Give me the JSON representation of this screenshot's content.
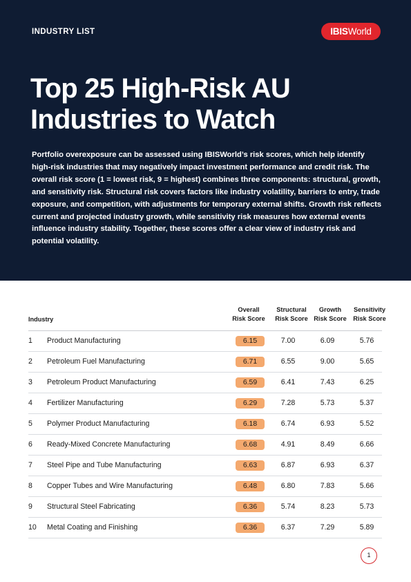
{
  "header": {
    "eyebrow": "INDUSTRY LIST",
    "logo": {
      "bold": "IBIS",
      "regular": "World"
    },
    "title_line1": "Top 25 High-Risk AU",
    "title_line2": "Industries to Watch",
    "intro": "Portfolio overexposure can be assessed using IBISWorld’s risk scores, which help identify high-risk industries that may negatively impact investment performance and credit risk. The overall risk score (1 = lowest risk, 9 = highest) combines three components: structural, growth, and sensitivity risk. Structural risk covers factors like industry volatility, barriers to entry, trade exposure, and competition, with adjustments for temporary external shifts. Growth risk reflects current and projected industry growth, while sensitivity risk measures how external events influence industry stability. Together, these scores offer a clear view of industry risk and potential volatility."
  },
  "colors": {
    "hero_bg": "#0f1c33",
    "brand_red": "#e1262d",
    "score_highlight": "#f4a96e"
  },
  "table": {
    "headers": {
      "industry": "Industry",
      "overall_line1": "Overall",
      "overall_line2": "Risk Score",
      "structural_line1": "Structural",
      "structural_line2": "Risk Score",
      "growth_line1": "Growth",
      "growth_line2": "Risk Score",
      "sensitivity_line1": "Sensitivity",
      "sensitivity_line2": "Risk Score"
    },
    "rows": [
      {
        "rank": "1",
        "industry": "Product Manufacturing",
        "overall": "6.15",
        "structural": "7.00",
        "growth": "6.09",
        "sensitivity": "5.76"
      },
      {
        "rank": "2",
        "industry": "Petroleum Fuel Manufacturing",
        "overall": "6.71",
        "structural": "6.55",
        "growth": "9.00",
        "sensitivity": "5.65"
      },
      {
        "rank": "3",
        "industry": "Petroleum Product Manufacturing",
        "overall": "6.59",
        "structural": "6.41",
        "growth": "7.43",
        "sensitivity": "6.25"
      },
      {
        "rank": "4",
        "industry": "Fertilizer Manufacturing",
        "overall": "6.29",
        "structural": "7.28",
        "growth": "5.73",
        "sensitivity": "5.37"
      },
      {
        "rank": "5",
        "industry": "Polymer Product Manufacturing",
        "overall": "6.18",
        "structural": "6.74",
        "growth": "6.93",
        "sensitivity": "5.52"
      },
      {
        "rank": "6",
        "industry": "Ready-Mixed Concrete Manufacturing",
        "overall": "6.68",
        "structural": "4.91",
        "growth": "8.49",
        "sensitivity": "6.66"
      },
      {
        "rank": "7",
        "industry": "Steel Pipe and Tube Manufacturing",
        "overall": "6.63",
        "structural": "6.87",
        "growth": "6.93",
        "sensitivity": "6.37"
      },
      {
        "rank": "8",
        "industry": "Copper Tubes and Wire Manufacturing",
        "overall": "6.48",
        "structural": "6.80",
        "growth": "7.83",
        "sensitivity": "5.66"
      },
      {
        "rank": "9",
        "industry": "Structural Steel Fabricating",
        "overall": "6.36",
        "structural": "5.74",
        "growth": "8.23",
        "sensitivity": "5.73"
      },
      {
        "rank": "10",
        "industry": "Metal Coating and Finishing",
        "overall": "6.36",
        "structural": "6.37",
        "growth": "7.29",
        "sensitivity": "5.89"
      }
    ]
  },
  "footer": {
    "page_number": "1"
  }
}
